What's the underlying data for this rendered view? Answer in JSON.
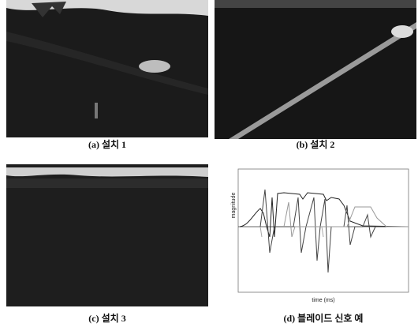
{
  "panels": [
    {
      "caption": "(a) 설치 1"
    },
    {
      "caption": "(b) 설치 2"
    },
    {
      "caption": "(c) 설치 3"
    },
    {
      "caption": "(d) 블레이드 신호 예"
    }
  ],
  "chart": {
    "y_label": "magnitude",
    "x_label": "time (ms)"
  }
}
